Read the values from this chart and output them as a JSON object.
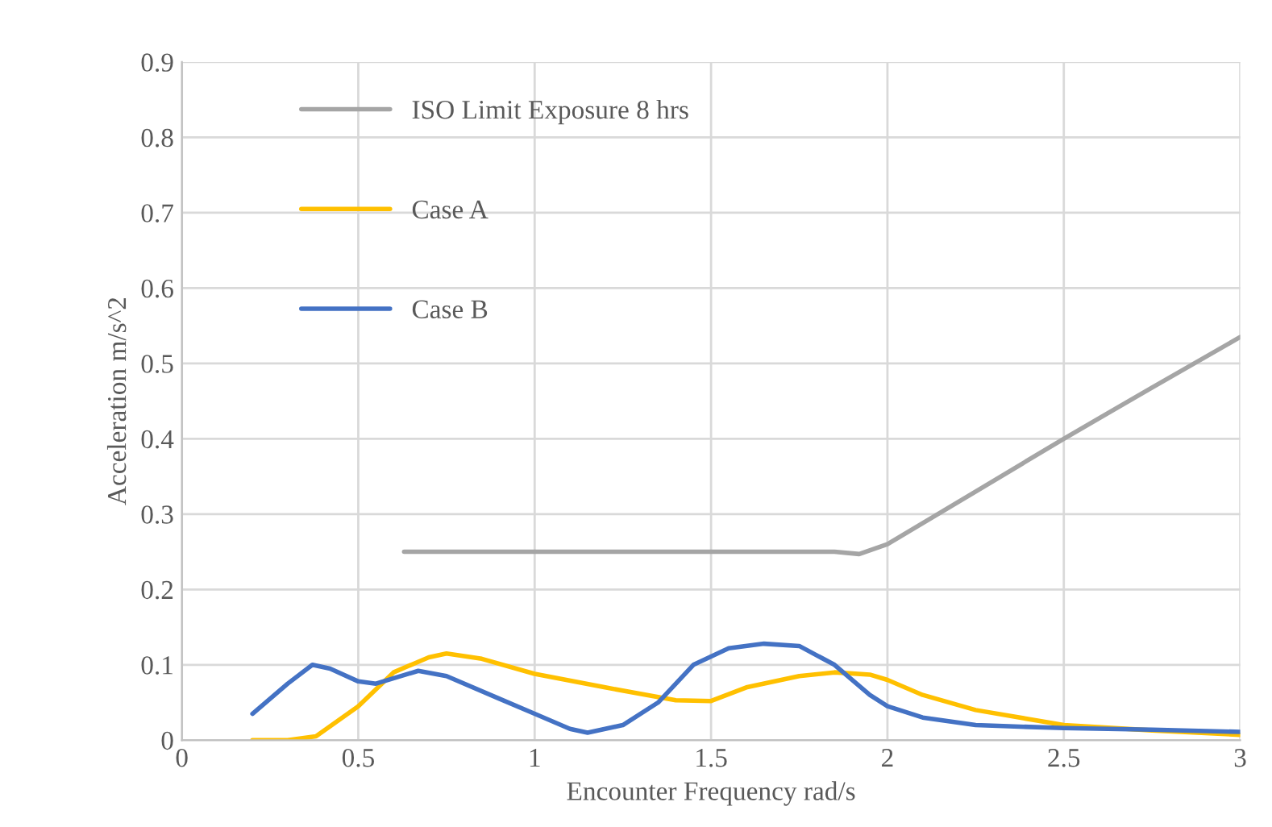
{
  "chart_data": {
    "type": "line",
    "xlabel": "Encounter Frequency rad/s",
    "ylabel": "Acceleration m/s^2",
    "xlim": [
      0,
      3
    ],
    "xticks": [
      0,
      0.5,
      1,
      1.5,
      2,
      2.5,
      3
    ],
    "ylim": [
      0,
      0.9
    ],
    "yticks": [
      0,
      0.1,
      0.2,
      0.3,
      0.4,
      0.5,
      0.6,
      0.7,
      0.8,
      0.9
    ],
    "grid": true,
    "legend": "top left",
    "line_style": "solid",
    "series": [
      {
        "name": "ISO Limit Exposure 8 hrs",
        "color": "#a5a5a5",
        "x": [
          0.63,
          1.0,
          1.5,
          1.85,
          1.92,
          2.0,
          2.25,
          2.5,
          2.75,
          3.0
        ],
        "values": [
          0.25,
          0.25,
          0.25,
          0.25,
          0.247,
          0.26,
          0.33,
          0.4,
          0.468,
          0.535
        ]
      },
      {
        "name": "Case A",
        "color": "#ffc000",
        "x": [
          0.2,
          0.3,
          0.38,
          0.5,
          0.6,
          0.7,
          0.75,
          0.85,
          1.0,
          1.2,
          1.4,
          1.5,
          1.6,
          1.75,
          1.85,
          1.95,
          2.0,
          2.1,
          2.25,
          2.5,
          2.75,
          3.0
        ],
        "values": [
          0,
          0,
          0.005,
          0.045,
          0.09,
          0.11,
          0.115,
          0.108,
          0.088,
          0.07,
          0.053,
          0.052,
          0.07,
          0.085,
          0.09,
          0.087,
          0.08,
          0.06,
          0.04,
          0.02,
          0.013,
          0.007
        ]
      },
      {
        "name": "Case B",
        "color": "#4472c4",
        "x": [
          0.2,
          0.3,
          0.37,
          0.42,
          0.5,
          0.55,
          0.67,
          0.75,
          0.9,
          1.0,
          1.1,
          1.15,
          1.25,
          1.35,
          1.45,
          1.55,
          1.65,
          1.75,
          1.85,
          1.95,
          2.0,
          2.1,
          2.25,
          2.5,
          2.75,
          3.0
        ],
        "values": [
          0.035,
          0.075,
          0.1,
          0.095,
          0.078,
          0.075,
          0.092,
          0.085,
          0.055,
          0.035,
          0.015,
          0.01,
          0.02,
          0.05,
          0.1,
          0.122,
          0.128,
          0.125,
          0.1,
          0.06,
          0.045,
          0.03,
          0.02,
          0.016,
          0.014,
          0.011
        ]
      }
    ]
  }
}
